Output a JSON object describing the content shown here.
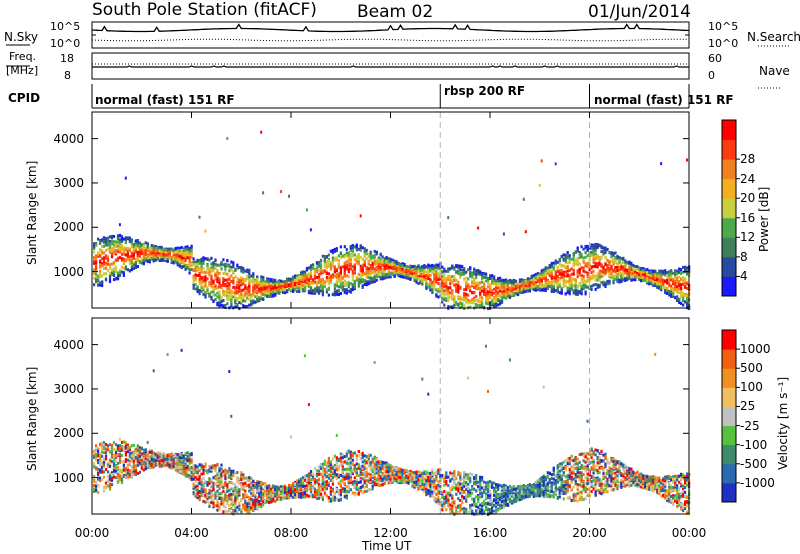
{
  "header": {
    "station": "South Pole Station (fitACF)",
    "beam": "Beam 02",
    "date": "01/Jun/2014"
  },
  "sky_panel": {
    "left_label": "N.Sky",
    "left_ticks": [
      "10^5",
      "10^0"
    ],
    "right_ticks": [
      "10^5",
      "10^0"
    ],
    "right_label": "N.Search"
  },
  "freq_panel": {
    "left_label_line1": "Freq.",
    "left_label_line2": "[MHz]",
    "left_ticks": [
      "18",
      "8"
    ],
    "right_ticks": [
      "60",
      "0"
    ],
    "right_label": "Nave"
  },
  "cpid": {
    "label": "CPID",
    "segments": [
      {
        "text": "normal (fast) 151 RF",
        "start_h": 0
      },
      {
        "text": "rbsp 200 RF",
        "start_h": 14
      },
      {
        "text": "normal (fast) 151 RF",
        "start_h": 20
      }
    ]
  },
  "chart_data": [
    {
      "type": "heatmap",
      "panel": "power",
      "ylabel": "Slant Range [km]",
      "xlabel": "Time UT",
      "x_ticks": [
        "00:00",
        "04:00",
        "08:00",
        "12:00",
        "16:00",
        "20:00",
        "00:00"
      ],
      "xlim_hours": [
        0,
        24
      ],
      "ylim_km": [
        180,
        4600
      ],
      "y_ticks": [
        1000,
        2000,
        3000,
        4000
      ],
      "markers_hours": [
        14,
        20
      ],
      "colorbar": {
        "label": "Power [dB]",
        "ticks": [
          "4",
          "8",
          "12",
          "16",
          "20",
          "24",
          "28"
        ],
        "range": [
          0,
          32
        ],
        "colors": [
          "#1a1aff",
          "#2a4aa0",
          "#3f7f5a",
          "#4fa84a",
          "#c8d040",
          "#f0b020",
          "#f08020",
          "#ff3a10",
          "#ff0000"
        ]
      }
    },
    {
      "type": "heatmap",
      "panel": "velocity",
      "ylabel": "Slant Range [km]",
      "xlabel": "Time UT",
      "x_ticks": [
        "00:00",
        "04:00",
        "08:00",
        "12:00",
        "16:00",
        "20:00",
        "00:00"
      ],
      "xlim_hours": [
        0,
        24
      ],
      "ylim_km": [
        180,
        4600
      ],
      "y_ticks": [
        1000,
        2000,
        3000,
        4000
      ],
      "markers_hours": [
        14,
        20
      ],
      "colorbar": {
        "label": "Velocity [m s⁻¹]",
        "ticks": [
          "1000",
          "500",
          "100",
          "25",
          "-25",
          "-100",
          "-500",
          "-1000"
        ],
        "colors": [
          "#2030c0",
          "#2a6ab0",
          "#3f8a6a",
          "#58c040",
          "#c0c0c0",
          "#f0c060",
          "#f09020",
          "#f06010",
          "#ff0000"
        ]
      }
    }
  ],
  "colors": {
    "axis": "#000000",
    "marker": "#b0b0b0"
  }
}
